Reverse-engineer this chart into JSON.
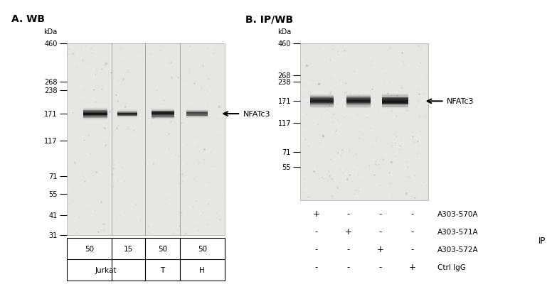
{
  "panel_A_title": "A. WB",
  "panel_B_title": "B. IP/WB",
  "label_NFATc3": "NFATc3",
  "kda_labels_A": [
    "460",
    "268",
    "238",
    "171",
    "117",
    "71",
    "55",
    "41",
    "31"
  ],
  "kda_vals_A": [
    460,
    268,
    238,
    171,
    117,
    71,
    55,
    41,
    31
  ],
  "kda_labels_B": [
    "460",
    "268",
    "238",
    "171",
    "117",
    "71",
    "55"
  ],
  "kda_vals_B": [
    460,
    268,
    238,
    171,
    117,
    71,
    55
  ],
  "kda_min": 31,
  "kda_max": 460,
  "panel_A_row1": [
    "50",
    "15",
    "50",
    "50"
  ],
  "panel_A_row2_jurkat": "Jurkat",
  "panel_A_row2_T": "T",
  "panel_A_row2_H": "H",
  "panel_B_ip_labels": [
    "A303-570A",
    "A303-571A",
    "A303-572A",
    "Ctrl IgG"
  ],
  "panel_B_ip_signs": [
    [
      "+",
      "-",
      "-",
      "-"
    ],
    [
      "-",
      "+",
      "-",
      "-"
    ],
    [
      "-",
      "-",
      "+",
      "-"
    ],
    [
      "-",
      "-",
      "-",
      "+"
    ]
  ],
  "IP_label": "IP",
  "blot_bg": "#e8e6e2",
  "band_color": "#111111",
  "figure_bg": "#ffffff"
}
